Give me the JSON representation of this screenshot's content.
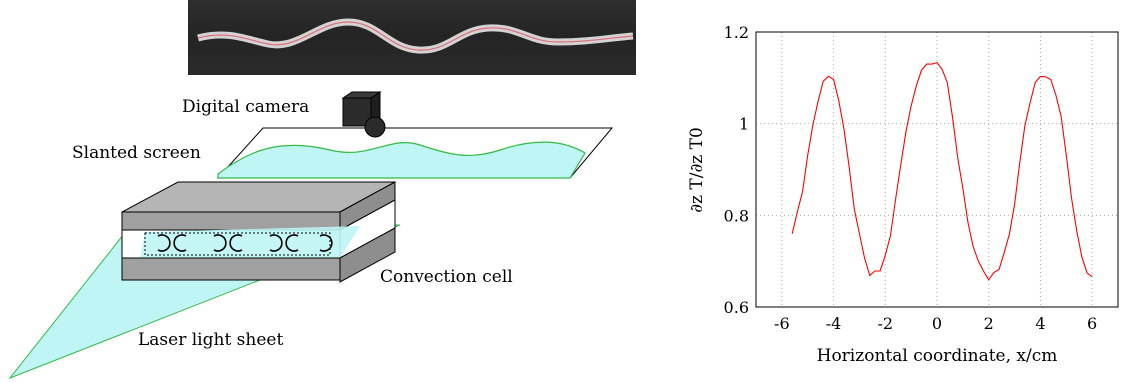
{
  "diagram": {
    "camera_label": "Digital camera",
    "screen_label": "Slanted screen",
    "cell_label": "Convection cell",
    "laser_label": "Laser light sheet",
    "colors": {
      "light_sheet": "#bff5f5",
      "profile": "#33bb44",
      "plates": "#a8a8a8"
    }
  },
  "chart_data": {
    "type": "line",
    "xlabel": "Horizontal coordinate, x/cm",
    "ylabel": "∂z T/∂z T0",
    "xlim": [
      -7,
      7
    ],
    "ylim": [
      0.6,
      1.2
    ],
    "xticks": [
      "-6",
      "-4",
      "-2",
      "0",
      "2",
      "4",
      "6"
    ],
    "yticks": [
      "0.6",
      "0.8",
      "1",
      "1.2"
    ],
    "grid": true,
    "color": "#ff0000",
    "series": [
      {
        "x": [
          -5.6,
          -5.4,
          -5.2,
          -5.0,
          -4.8,
          -4.6,
          -4.4,
          -4.2,
          -4.0,
          -3.8,
          -3.6,
          -3.4,
          -3.2,
          -3.0,
          -2.8,
          -2.6,
          -2.4,
          -2.2,
          -2.0,
          -1.8,
          -1.6,
          -1.4,
          -1.2,
          -1.0,
          -0.8,
          -0.6,
          -0.4,
          -0.2,
          0.0,
          0.2,
          0.4,
          0.6,
          0.8,
          1.0,
          1.2,
          1.4,
          1.6,
          1.8,
          2.0,
          2.2,
          2.4,
          2.6,
          2.8,
          3.0,
          3.2,
          3.4,
          3.6,
          3.8,
          4.0,
          4.2,
          4.4,
          4.6,
          4.8,
          5.0,
          5.2,
          5.4,
          5.6,
          5.8,
          6.0
        ],
        "y": [
          0.77,
          0.8,
          0.86,
          0.93,
          1.0,
          1.05,
          1.09,
          1.11,
          1.1,
          1.05,
          0.98,
          0.9,
          0.82,
          0.75,
          0.7,
          0.67,
          0.67,
          0.68,
          0.71,
          0.76,
          0.83,
          0.91,
          0.98,
          1.04,
          1.09,
          1.12,
          1.13,
          1.14,
          1.14,
          1.12,
          1.08,
          1.01,
          0.93,
          0.86,
          0.79,
          0.73,
          0.69,
          0.67,
          0.66,
          0.67,
          0.68,
          0.71,
          0.76,
          0.83,
          0.91,
          0.99,
          1.05,
          1.09,
          1.11,
          1.11,
          1.1,
          1.07,
          1.01,
          0.93,
          0.84,
          0.76,
          0.71,
          0.68,
          0.67
        ]
      }
    ]
  }
}
